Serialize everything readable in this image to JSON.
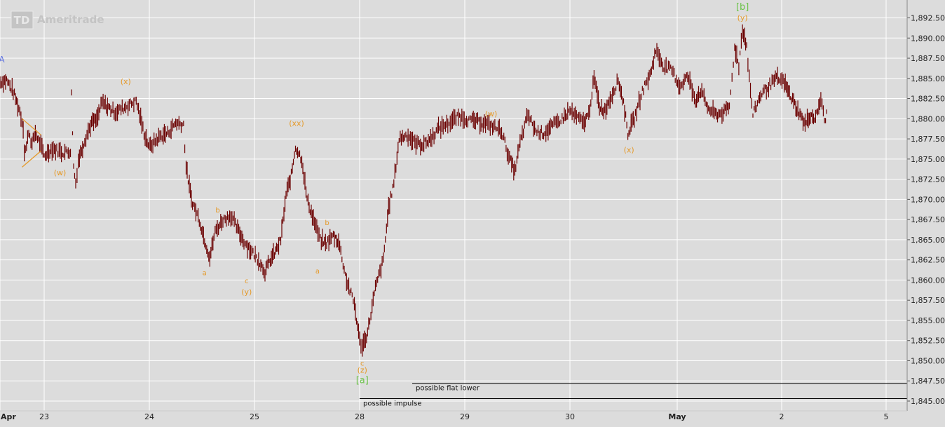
{
  "watermark": "Ameritrade",
  "watermark_logo": "TD",
  "chart_data": {
    "type": "line",
    "series_style": "ohlc-bars",
    "colors": {
      "background": "#dcdcdc",
      "grid": "#ffffff",
      "price": "#6b0000",
      "wave": "#e59a2a",
      "degree": "#6cc24a",
      "blue": "#5a6ee0",
      "ref_line": "#000000"
    },
    "x": [
      "Apr",
      "23",
      "24",
      "25",
      "28",
      "29",
      "30",
      "May",
      "2",
      "5"
    ],
    "y_ticks": [
      "1,892.50",
      "1,890.00",
      "1,887.50",
      "1,885.00",
      "1,882.50",
      "1,880.00",
      "1,877.50",
      "1,875.00",
      "1,872.50",
      "1,870.00",
      "1,867.50",
      "1,865.00",
      "1,862.50",
      "1,860.00",
      "1,857.50",
      "1,855.00",
      "1,852.50",
      "1,850.00",
      "1,847.50",
      "1,845.00"
    ],
    "ylim": [
      1844.0,
      1894.0
    ],
    "price_path": [
      [
        0.0,
        1884.5
      ],
      [
        0.3,
        1884.8
      ],
      [
        0.6,
        1883.3
      ],
      [
        0.9,
        1880.9
      ],
      [
        1.05,
        1879.0
      ],
      [
        1.1,
        1876.0
      ],
      [
        1.2,
        1876.5
      ],
      [
        1.3,
        1878.5
      ],
      [
        1.45,
        1876.8
      ],
      [
        1.6,
        1878.3
      ],
      [
        1.8,
        1877.0
      ],
      [
        2.0,
        1875.4
      ],
      [
        2.15,
        1876.3
      ],
      [
        2.35,
        1875.8
      ],
      [
        2.5,
        1876.0
      ],
      [
        2.52,
        1883.0
      ],
      [
        2.56,
        1874.0
      ],
      [
        2.6,
        1872.0
      ],
      [
        2.65,
        1874.8
      ],
      [
        2.75,
        1877.0
      ],
      [
        2.9,
        1879.5
      ],
      [
        3.0,
        1879.8
      ],
      [
        3.1,
        1882.0
      ],
      [
        3.35,
        1880.8
      ],
      [
        3.55,
        1881.5
      ],
      [
        3.75,
        1882.2
      ],
      [
        3.9,
        1878.2
      ],
      [
        4.0,
        1876.5
      ],
      [
        4.2,
        1877.8
      ],
      [
        4.35,
        1878.2
      ],
      [
        4.5,
        1879.5
      ],
      [
        4.65,
        1879.3
      ],
      [
        4.7,
        1874.0
      ],
      [
        4.8,
        1870.0
      ],
      [
        4.95,
        1867.5
      ],
      [
        5.05,
        1865.0
      ],
      [
        5.15,
        1862.8
      ],
      [
        5.25,
        1866.0
      ],
      [
        5.4,
        1867.5
      ],
      [
        5.55,
        1868.0
      ],
      [
        5.7,
        1866.0
      ],
      [
        5.8,
        1864.8
      ],
      [
        5.95,
        1863.5
      ],
      [
        6.1,
        1862.3
      ],
      [
        6.2,
        1861.0
      ],
      [
        6.3,
        1862.5
      ],
      [
        6.4,
        1863.5
      ],
      [
        6.5,
        1865.0
      ],
      [
        6.6,
        1870.5
      ],
      [
        6.7,
        1873.0
      ],
      [
        6.78,
        1876.5
      ],
      [
        6.9,
        1875.0
      ],
      [
        7.0,
        1870.0
      ],
      [
        7.1,
        1868.0
      ],
      [
        7.25,
        1865.0
      ],
      [
        7.35,
        1864.5
      ],
      [
        7.5,
        1865.5
      ],
      [
        7.6,
        1864.8
      ],
      [
        7.75,
        1860.0
      ],
      [
        7.9,
        1857.0
      ],
      [
        8.0,
        1852.5
      ],
      [
        8.05,
        1851.8
      ],
      [
        8.15,
        1853.5
      ],
      [
        8.3,
        1859.0
      ],
      [
        8.45,
        1862.5
      ],
      [
        8.55,
        1869.0
      ],
      [
        8.65,
        1872.0
      ],
      [
        8.75,
        1877.5
      ],
      [
        8.9,
        1878.0
      ],
      [
        9.05,
        1877.0
      ],
      [
        9.2,
        1876.8
      ],
      [
        9.35,
        1877.5
      ],
      [
        9.5,
        1878.8
      ],
      [
        9.7,
        1879.5
      ],
      [
        9.9,
        1880.3
      ],
      [
        10.1,
        1879.8
      ],
      [
        10.35,
        1879.5
      ],
      [
        10.55,
        1879.0
      ],
      [
        10.7,
        1878.5
      ],
      [
        10.85,
        1875.0
      ],
      [
        10.95,
        1873.5
      ],
      [
        11.05,
        1877.0
      ],
      [
        11.2,
        1880.5
      ],
      [
        11.35,
        1878.5
      ],
      [
        11.5,
        1878.2
      ],
      [
        11.65,
        1879.0
      ],
      [
        11.85,
        1880.0
      ],
      [
        12.0,
        1881.0
      ],
      [
        12.1,
        1880.3
      ],
      [
        12.25,
        1879.5
      ],
      [
        12.35,
        1880.5
      ],
      [
        12.45,
        1885.0
      ],
      [
        12.55,
        1881.5
      ],
      [
        12.65,
        1881.0
      ],
      [
        12.75,
        1882.5
      ],
      [
        12.9,
        1884.8
      ],
      [
        13.0,
        1882.0
      ],
      [
        13.08,
        1878.2
      ],
      [
        13.2,
        1880.0
      ],
      [
        13.35,
        1883.5
      ],
      [
        13.5,
        1885.5
      ],
      [
        13.6,
        1888.5
      ],
      [
        13.75,
        1886.5
      ],
      [
        13.9,
        1886.0
      ],
      [
        14.05,
        1884.0
      ],
      [
        14.2,
        1885.3
      ],
      [
        14.35,
        1882.3
      ],
      [
        14.45,
        1883.5
      ],
      [
        14.6,
        1881.2
      ],
      [
        14.75,
        1880.5
      ],
      [
        14.9,
        1880.8
      ],
      [
        15.0,
        1881.5
      ],
      [
        15.05,
        1885.0
      ],
      [
        15.1,
        1889.0
      ],
      [
        15.18,
        1886.5
      ],
      [
        15.25,
        1891.2
      ],
      [
        15.33,
        1889.0
      ],
      [
        15.38,
        1885.0
      ],
      [
        15.45,
        1880.5
      ],
      [
        15.6,
        1883.0
      ],
      [
        15.75,
        1884.0
      ],
      [
        15.9,
        1885.0
      ],
      [
        16.05,
        1884.5
      ],
      [
        16.15,
        1883.0
      ],
      [
        16.25,
        1881.8
      ],
      [
        16.35,
        1880.5
      ],
      [
        16.45,
        1879.3
      ],
      [
        16.55,
        1880.5
      ],
      [
        16.65,
        1880.0
      ],
      [
        16.75,
        1882.5
      ],
      [
        16.82,
        1879.7
      ],
      [
        16.88,
        1881.0
      ]
    ],
    "labels": [
      {
        "text": "A",
        "t": 0.08,
        "p": 1887.0,
        "color": "blue",
        "size": 12
      },
      {
        "text": "(x)",
        "t": 3.55,
        "p": 1884.3,
        "color": "wave",
        "size": 11
      },
      {
        "text": "(w)",
        "t": 2.3,
        "p": 1873.0,
        "color": "wave",
        "size": 11
      },
      {
        "text": "(xx)",
        "t": 6.8,
        "p": 1879.1,
        "color": "wave",
        "size": 11
      },
      {
        "text": "b",
        "t": 5.3,
        "p": 1868.4,
        "color": "wave",
        "size": 10
      },
      {
        "text": "a",
        "t": 5.05,
        "p": 1860.6,
        "color": "wave",
        "size": 10
      },
      {
        "text": "c",
        "t": 5.85,
        "p": 1859.6,
        "color": "wave",
        "size": 10
      },
      {
        "text": "(y)",
        "t": 5.85,
        "p": 1858.2,
        "color": "wave",
        "size": 11
      },
      {
        "text": "b",
        "t": 7.38,
        "p": 1866.8,
        "color": "wave",
        "size": 10
      },
      {
        "text": "a",
        "t": 7.2,
        "p": 1860.8,
        "color": "wave",
        "size": 10
      },
      {
        "text": "c",
        "t": 8.05,
        "p": 1849.4,
        "color": "wave",
        "size": 10
      },
      {
        "text": "(z)",
        "t": 8.05,
        "p": 1848.5,
        "color": "wave",
        "size": 11
      },
      {
        "text": "[a]",
        "t": 8.05,
        "p": 1847.2,
        "color": "degree",
        "size": 13
      },
      {
        "text": "(w)",
        "t": 10.5,
        "p": 1880.3,
        "color": "wave",
        "size": 11
      },
      {
        "text": "(x)",
        "t": 13.1,
        "p": 1875.8,
        "color": "wave",
        "size": 11
      },
      {
        "text": "[b]",
        "t": 15.25,
        "p": 1893.5,
        "color": "degree",
        "size": 13
      },
      {
        "text": "(y)",
        "t": 15.25,
        "p": 1892.2,
        "color": "wave",
        "size": 11
      }
    ],
    "triangle": [
      [
        [
          1.0,
          1880.0
        ],
        [
          1.85,
          1878.0
        ]
      ],
      [
        [
          1.0,
          1874.0
        ],
        [
          1.85,
          1876.0
        ]
      ]
    ],
    "ref_lines": [
      {
        "text": "possible flat lower",
        "p": 1847.2,
        "t_start": 9.0
      },
      {
        "text": "possible impulse",
        "p": 1845.3,
        "t_start": 8.0
      }
    ]
  }
}
